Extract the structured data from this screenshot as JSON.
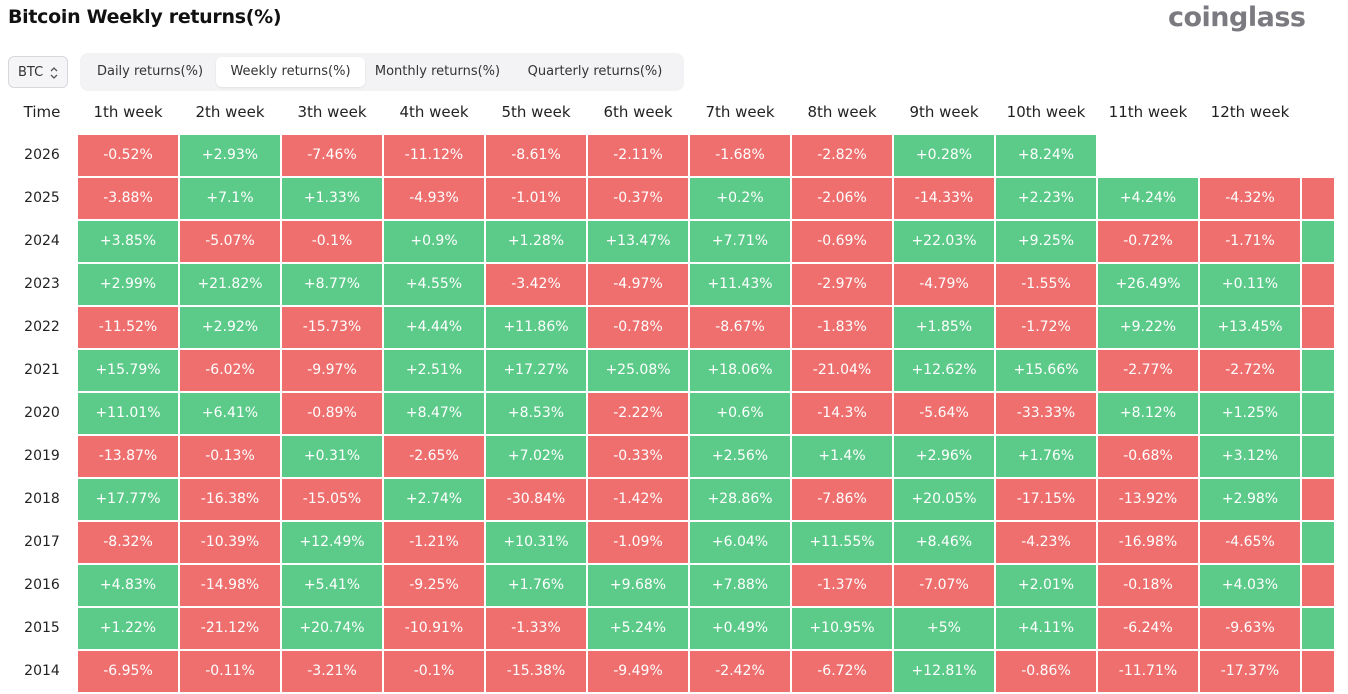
{
  "header": {
    "title": "Bitcoin Weekly returns(%)",
    "logo": "coinglass"
  },
  "selector": {
    "label": "BTC"
  },
  "tabs": [
    "Daily returns(%)",
    "Weekly returns(%)",
    "Monthly returns(%)",
    "Quarterly returns(%)"
  ],
  "table": {
    "columns": [
      "Time",
      "1th week",
      "2th week",
      "3th week",
      "4th week",
      "5th week",
      "6th week",
      "7th week",
      "8th week",
      "9th week",
      "10th week",
      "11th week",
      "12th week"
    ],
    "rows": [
      {
        "year": "2026",
        "cells": [
          "-0.52%",
          "+2.93%",
          "-7.46%",
          "-11.12%",
          "-8.61%",
          "-2.11%",
          "-1.68%",
          "-2.82%",
          "+0.28%",
          "+8.24%"
        ]
      },
      {
        "year": "2025",
        "cells": [
          "-3.88%",
          "+7.1%",
          "+1.33%",
          "-4.93%",
          "-1.01%",
          "-0.37%",
          "+0.2%",
          "-2.06%",
          "-14.33%",
          "+2.23%",
          "+4.24%",
          "-4.32%"
        ]
      },
      {
        "year": "2024",
        "cells": [
          "+3.85%",
          "-5.07%",
          "-0.1%",
          "+0.9%",
          "+1.28%",
          "+13.47%",
          "+7.71%",
          "-0.69%",
          "+22.03%",
          "+9.25%",
          "-0.72%",
          "-1.71%"
        ]
      },
      {
        "year": "2023",
        "cells": [
          "+2.99%",
          "+21.82%",
          "+8.77%",
          "+4.55%",
          "-3.42%",
          "-4.97%",
          "+11.43%",
          "-2.97%",
          "-4.79%",
          "-1.55%",
          "+26.49%",
          "+0.11%"
        ]
      },
      {
        "year": "2022",
        "cells": [
          "-11.52%",
          "+2.92%",
          "-15.73%",
          "+4.44%",
          "+11.86%",
          "-0.78%",
          "-8.67%",
          "-1.83%",
          "+1.85%",
          "-1.72%",
          "+9.22%",
          "+13.45%"
        ]
      },
      {
        "year": "2021",
        "cells": [
          "+15.79%",
          "-6.02%",
          "-9.97%",
          "+2.51%",
          "+17.27%",
          "+25.08%",
          "+18.06%",
          "-21.04%",
          "+12.62%",
          "+15.66%",
          "-2.77%",
          "-2.72%"
        ]
      },
      {
        "year": "2020",
        "cells": [
          "+11.01%",
          "+6.41%",
          "-0.89%",
          "+8.47%",
          "+8.53%",
          "-2.22%",
          "+0.6%",
          "-14.3%",
          "-5.64%",
          "-33.33%",
          "+8.12%",
          "+1.25%"
        ]
      },
      {
        "year": "2019",
        "cells": [
          "-13.87%",
          "-0.13%",
          "+0.31%",
          "-2.65%",
          "+7.02%",
          "-0.33%",
          "+2.56%",
          "+1.4%",
          "+2.96%",
          "+1.76%",
          "-0.68%",
          "+3.12%"
        ]
      },
      {
        "year": "2018",
        "cells": [
          "+17.77%",
          "-16.38%",
          "-15.05%",
          "+2.74%",
          "-30.84%",
          "-1.42%",
          "+28.86%",
          "-7.86%",
          "+20.05%",
          "-17.15%",
          "-13.92%",
          "+2.98%"
        ]
      },
      {
        "year": "2017",
        "cells": [
          "-8.32%",
          "-10.39%",
          "+12.49%",
          "-1.21%",
          "+10.31%",
          "-1.09%",
          "+6.04%",
          "+11.55%",
          "+8.46%",
          "-4.23%",
          "-16.98%",
          "-4.65%"
        ]
      },
      {
        "year": "2016",
        "cells": [
          "+4.83%",
          "-14.98%",
          "+5.41%",
          "-9.25%",
          "+1.76%",
          "+9.68%",
          "+7.88%",
          "-1.37%",
          "-7.07%",
          "+2.01%",
          "-0.18%",
          "+4.03%"
        ]
      },
      {
        "year": "2015",
        "cells": [
          "+1.22%",
          "-21.12%",
          "+20.74%",
          "-10.91%",
          "-1.33%",
          "+5.24%",
          "+0.49%",
          "+10.95%",
          "+5%",
          "+4.11%",
          "-6.24%",
          "-9.63%"
        ]
      },
      {
        "year": "2014",
        "cells": [
          "-6.95%",
          "-0.11%",
          "-3.21%",
          "-0.1%",
          "-15.38%",
          "-9.49%",
          "-2.42%",
          "-6.72%",
          "+12.81%",
          "-0.86%",
          "-11.71%",
          "-17.37%"
        ]
      }
    ]
  }
}
